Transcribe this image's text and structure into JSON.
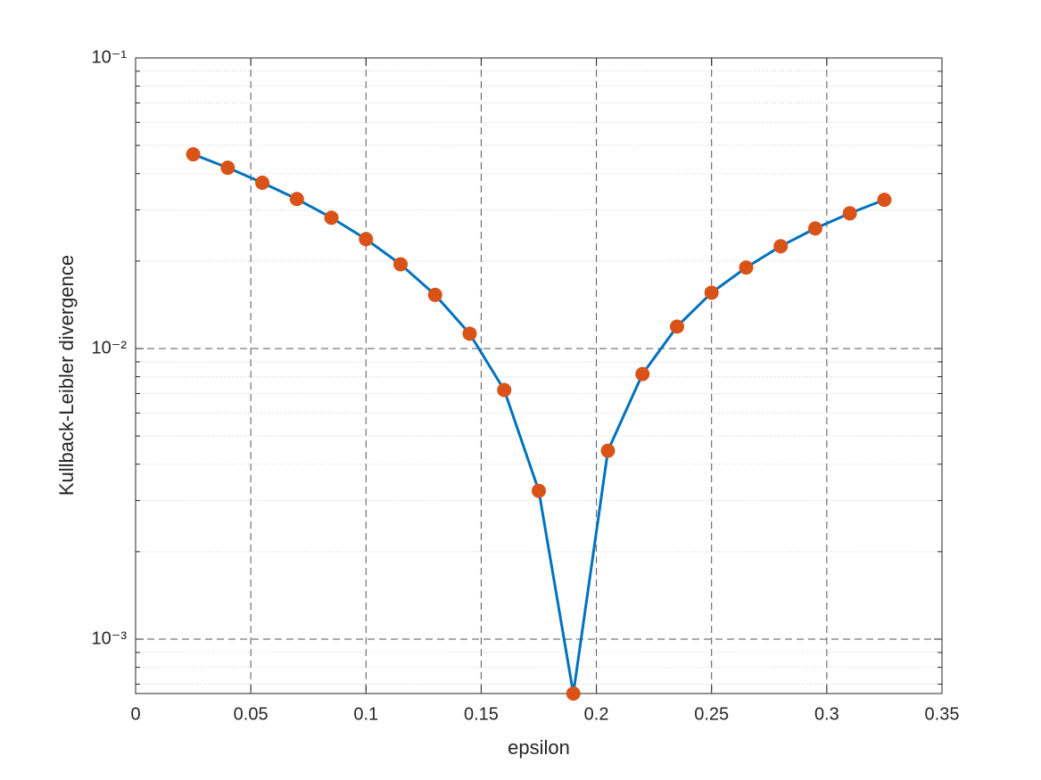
{
  "chart_data": {
    "type": "line",
    "x_label": "epsilon",
    "y_label": "Kullback-Leibler divergence",
    "x": [
      0.025,
      0.04,
      0.055,
      0.07,
      0.085,
      0.1,
      0.115,
      0.13,
      0.145,
      0.16,
      0.175,
      0.19,
      0.205,
      0.22,
      0.235,
      0.25,
      0.265,
      0.28,
      0.295,
      0.31,
      0.325
    ],
    "series": [
      {
        "line_color": "#0072bd",
        "marker_color": "#d95319",
        "values": [
          0.0466,
          0.0419,
          0.0372,
          0.0327,
          0.0282,
          0.0238,
          0.0195,
          0.0153,
          0.01125,
          0.0072,
          0.00324,
          0.00065,
          0.00445,
          0.00817,
          0.0119,
          0.01557,
          0.019,
          0.0225,
          0.0259,
          0.0292,
          0.0325
        ]
      }
    ],
    "xlim": [
      0,
      0.35
    ],
    "xticks": [
      0,
      0.05,
      0.1,
      0.15,
      0.2,
      0.25,
      0.3,
      0.35
    ],
    "ylim": [
      0.00065,
      0.1
    ],
    "yscale": "log",
    "yticks": [
      {
        "value": 0.001,
        "label": "10⁻³"
      },
      {
        "value": 0.01,
        "label": "10⁻²"
      },
      {
        "value": 0.1,
        "label": "10⁻¹"
      }
    ],
    "yminorticks": [
      0.0007,
      0.0008,
      0.0009,
      0.002,
      0.003,
      0.004,
      0.005,
      0.006,
      0.007,
      0.008,
      0.009,
      0.02,
      0.03,
      0.04,
      0.05,
      0.06,
      0.07,
      0.08,
      0.09
    ],
    "grid": true
  }
}
